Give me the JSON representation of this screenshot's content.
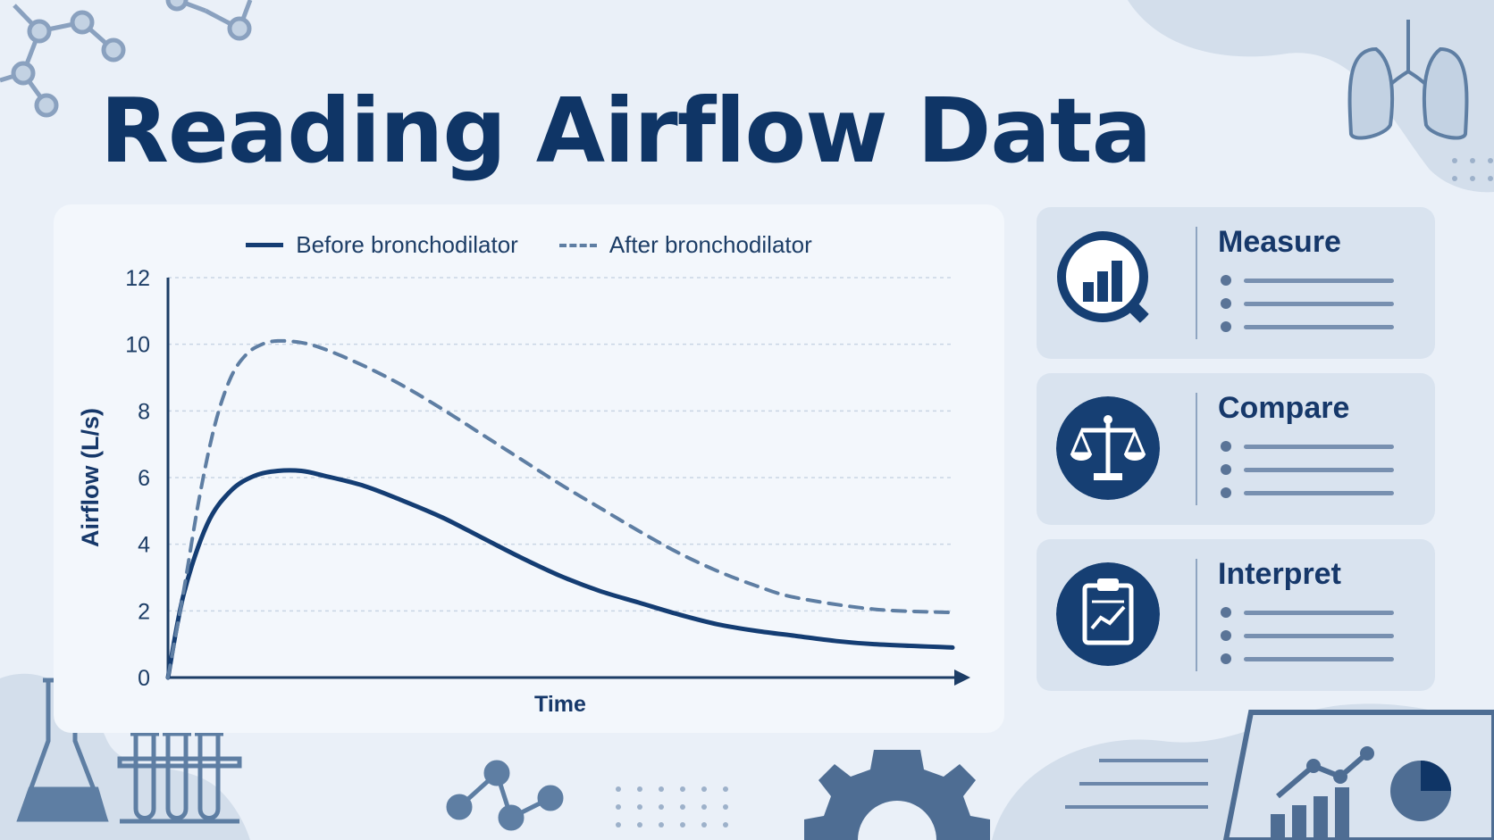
{
  "title": "Reading Airflow Data",
  "chart_data": {
    "type": "line",
    "ylabel": "Airflow (L/s)",
    "xlabel": "Time",
    "ylim": [
      0,
      12
    ],
    "yticks": [
      "0",
      "2",
      "4",
      "6",
      "8",
      "10",
      "12"
    ],
    "grid": "horizontal dashed",
    "legend_position": "top",
    "series": [
      {
        "name": "Before bronchodilator",
        "style": "solid",
        "color": "#143d73",
        "points": [
          [
            0,
            0
          ],
          [
            0.02,
            2.5
          ],
          [
            0.05,
            4.6
          ],
          [
            0.08,
            5.6
          ],
          [
            0.11,
            6.05
          ],
          [
            0.14,
            6.2
          ],
          [
            0.17,
            6.2
          ],
          [
            0.2,
            6.05
          ],
          [
            0.25,
            5.75
          ],
          [
            0.3,
            5.3
          ],
          [
            0.35,
            4.8
          ],
          [
            0.4,
            4.2
          ],
          [
            0.45,
            3.6
          ],
          [
            0.5,
            3.05
          ],
          [
            0.55,
            2.6
          ],
          [
            0.6,
            2.25
          ],
          [
            0.65,
            1.9
          ],
          [
            0.7,
            1.6
          ],
          [
            0.75,
            1.4
          ],
          [
            0.8,
            1.25
          ],
          [
            0.85,
            1.1
          ],
          [
            0.9,
            1.0
          ],
          [
            1.0,
            0.9
          ]
        ]
      },
      {
        "name": "After bronchodilator",
        "style": "dashed",
        "color": "#5e7ea3",
        "points": [
          [
            0,
            0
          ],
          [
            0.02,
            2.6
          ],
          [
            0.04,
            5.4
          ],
          [
            0.06,
            7.6
          ],
          [
            0.08,
            9.0
          ],
          [
            0.1,
            9.7
          ],
          [
            0.12,
            10.0
          ],
          [
            0.14,
            10.1
          ],
          [
            0.17,
            10.05
          ],
          [
            0.2,
            9.85
          ],
          [
            0.25,
            9.35
          ],
          [
            0.3,
            8.75
          ],
          [
            0.35,
            8.05
          ],
          [
            0.4,
            7.3
          ],
          [
            0.45,
            6.55
          ],
          [
            0.5,
            5.8
          ],
          [
            0.55,
            5.1
          ],
          [
            0.6,
            4.4
          ],
          [
            0.65,
            3.75
          ],
          [
            0.7,
            3.2
          ],
          [
            0.75,
            2.75
          ],
          [
            0.8,
            2.4
          ],
          [
            0.9,
            2.05
          ],
          [
            1.0,
            1.95
          ]
        ]
      }
    ]
  },
  "side_cards": [
    {
      "title": "Measure",
      "icon": "magnifier-chart-icon"
    },
    {
      "title": "Compare",
      "icon": "scales-icon"
    },
    {
      "title": "Interpret",
      "icon": "clipboard-chart-icon"
    }
  ],
  "colors": {
    "background": "#eaf0f8",
    "accent": "#143d73",
    "secondary": "#5e7ea3",
    "card": "#d9e3ef"
  }
}
